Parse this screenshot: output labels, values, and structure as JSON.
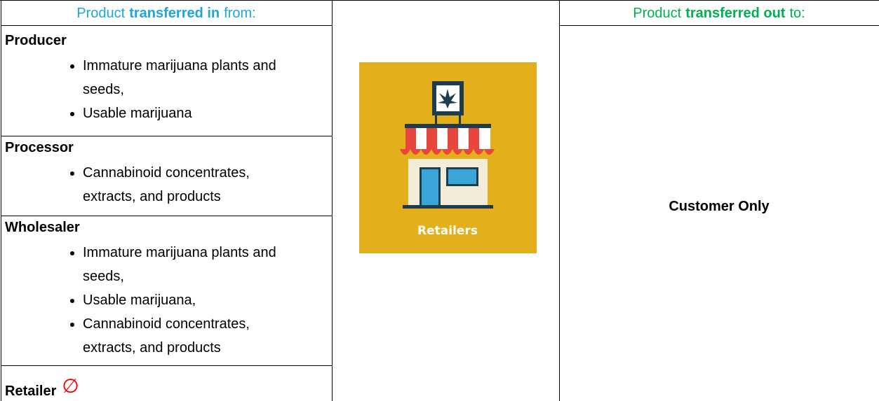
{
  "header": {
    "left": {
      "lead": "Product",
      "bold": "transferred in",
      "tail": "from:"
    },
    "right": {
      "lead": "Product",
      "bold": "transferred out",
      "tail": "to:"
    }
  },
  "sections": [
    {
      "title": "Producer",
      "items": [
        "Immature marijuana plants and seeds,",
        "Usable marijuana"
      ]
    },
    {
      "title": "Processor",
      "items": [
        "Cannabinoid concentrates, extracts, and products"
      ]
    },
    {
      "title": "Wholesaler",
      "items": [
        "Immature marijuana plants and seeds,",
        "Usable marijuana,",
        "Cannabinoid concentrates, extracts, and products"
      ]
    }
  ],
  "retailer": {
    "title": "Retailer",
    "symbol": "∅"
  },
  "image": {
    "label": "Retailers"
  },
  "destination": "Customer Only"
}
